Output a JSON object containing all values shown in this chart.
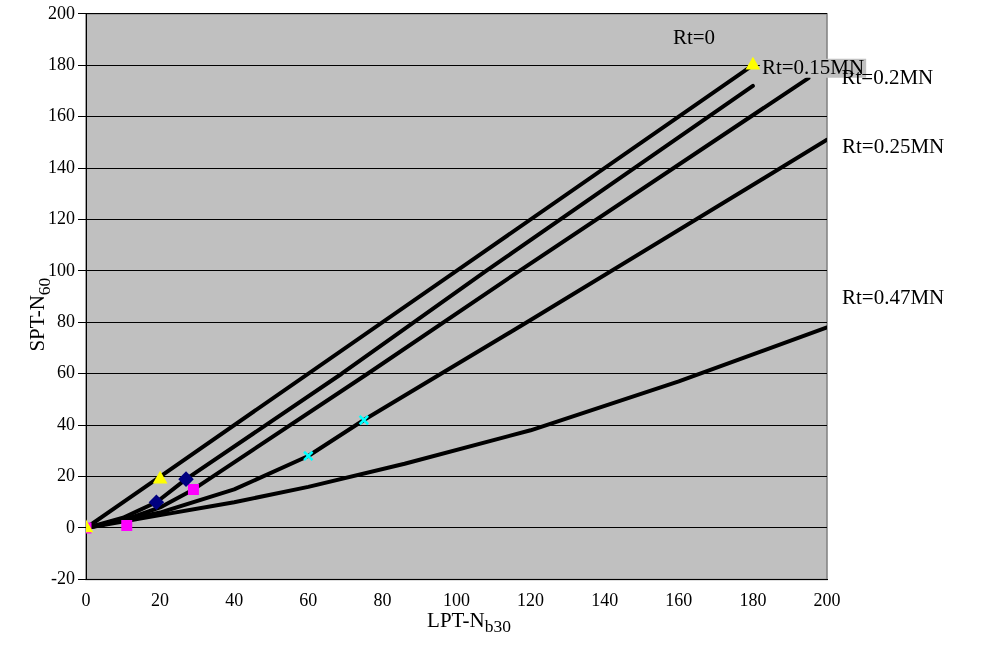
{
  "chart_data": {
    "type": "line",
    "xlabel": "LPT-N$_{b30}$",
    "ylabel": "SPT-N$_{60}$",
    "xlim": [
      0,
      200
    ],
    "xticks": [
      0,
      20,
      40,
      60,
      80,
      100,
      120,
      140,
      160,
      180,
      200
    ],
    "ylim": [
      -20,
      200
    ],
    "yticks": [
      -20,
      0,
      20,
      40,
      60,
      80,
      100,
      120,
      140,
      160,
      180,
      200
    ],
    "grid": "y",
    "legend": false,
    "series": [
      {
        "name": "Rt=0",
        "color": "#000000",
        "marker": "none",
        "line_style": "solid",
        "x": [
          0,
          20,
          100,
          180
        ],
        "values": [
          0,
          20,
          100,
          180
        ]
      },
      {
        "name": "Rt=0.15MN",
        "color": "#000000",
        "marker": "none",
        "line_style": "solid",
        "x": [
          0,
          10,
          19,
          27,
          69,
          108,
          180
        ],
        "values": [
          0,
          4,
          10,
          19,
          60,
          100,
          172
        ]
      },
      {
        "name": "Rt=0.2MN",
        "color": "#000000",
        "marker": "none",
        "line_style": "solid",
        "x": [
          0,
          10,
          20,
          29,
          76,
          117,
          195
        ],
        "values": [
          0,
          3,
          8,
          15,
          60,
          100,
          175
        ]
      },
      {
        "name": "Rt=0.25MN",
        "color": "#000000",
        "marker": "none",
        "line_style": "solid",
        "x": [
          0,
          20,
          40,
          60,
          75,
          119,
          200
        ],
        "values": [
          0,
          6,
          15,
          28,
          42,
          80,
          151
        ]
      },
      {
        "name": "Rt=0.47MN",
        "color": "#000000",
        "marker": "none",
        "line_style": "solid",
        "x": [
          0,
          20,
          40,
          60,
          86,
          120,
          160,
          200
        ],
        "values": [
          0,
          5,
          10,
          16,
          25,
          38,
          57,
          78
        ]
      },
      {
        "type": "scatter",
        "color": "#ffff00",
        "marker": "triangle",
        "x": [
          0,
          20,
          180
        ],
        "values": [
          0,
          19,
          180
        ]
      },
      {
        "type": "scatter",
        "color": "#000080",
        "marker": "diamond",
        "x": [
          19,
          27
        ],
        "values": [
          10,
          19
        ]
      },
      {
        "type": "scatter",
        "color": "#ff00ff",
        "marker": "square",
        "x": [
          0,
          11,
          29
        ],
        "values": [
          0,
          1,
          15
        ]
      },
      {
        "type": "scatter",
        "color": "#00ffff",
        "marker": "cross",
        "x": [
          60,
          75
        ],
        "values": [
          28,
          42
        ]
      }
    ]
  }
}
